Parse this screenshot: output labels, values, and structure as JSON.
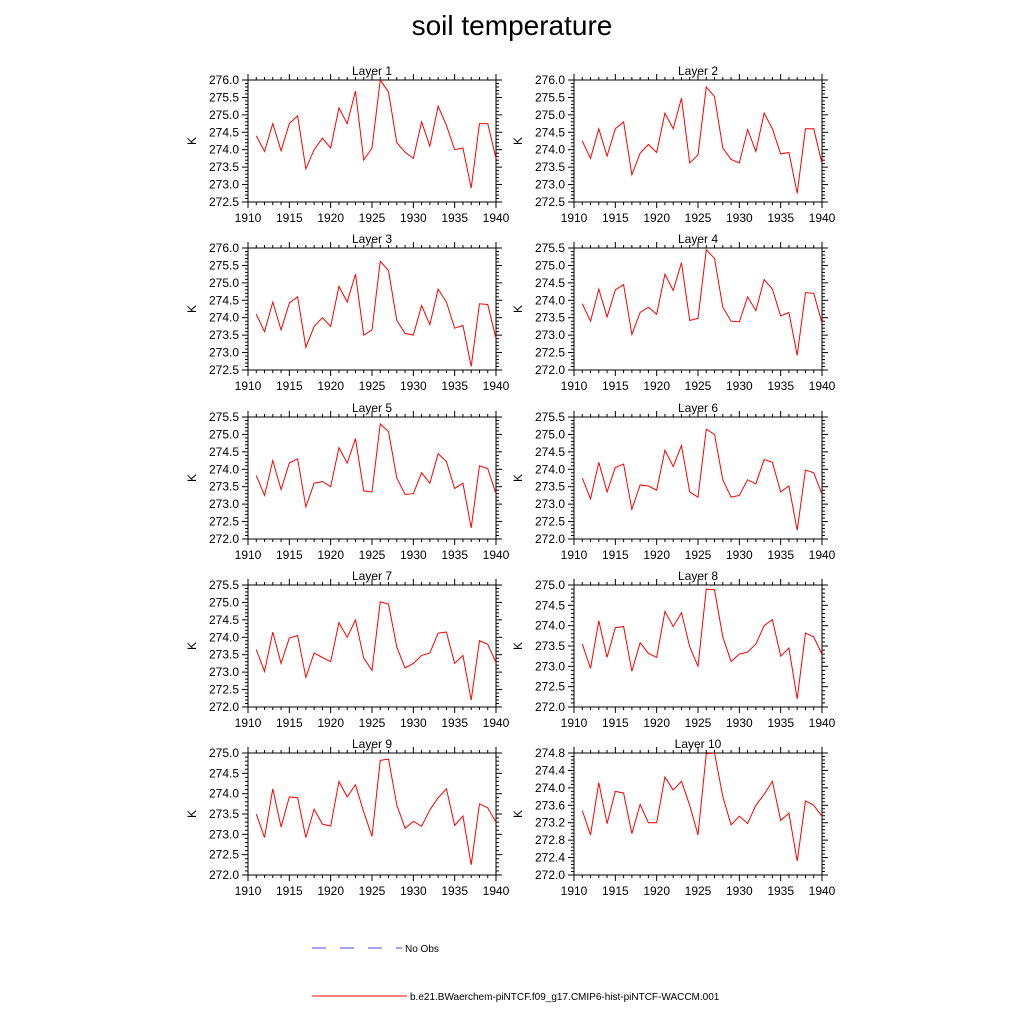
{
  "title": "soil temperature",
  "legend": {
    "obs_label": "No Obs",
    "obs_color": "#4a4adc",
    "model_label": "b.e21.BWaerchem-piNTCF.f09_g17.CMIP6-hist-piNTCF-WACCM.001",
    "model_color": "#ff0000"
  },
  "chart_data": [
    {
      "type": "line",
      "title": "Layer 1",
      "ylabel": "K",
      "xlim": [
        1910,
        1940
      ],
      "ylim": [
        272.5,
        276.0
      ],
      "xticks": [
        1910,
        1915,
        1920,
        1925,
        1930,
        1935,
        1940
      ],
      "yticks": [
        "272.5",
        "273.0",
        "273.5",
        "274.0",
        "274.5",
        "275.0",
        "275.5",
        "276.0"
      ],
      "x": [
        1911,
        1912,
        1913,
        1914,
        1915,
        1916,
        1917,
        1918,
        1919,
        1920,
        1921,
        1922,
        1923,
        1924,
        1925,
        1926,
        1927,
        1928,
        1929,
        1930,
        1931,
        1932,
        1933,
        1934,
        1935,
        1936,
        1937,
        1938,
        1939,
        1940
      ],
      "series": [
        {
          "values": [
            274.4,
            273.95,
            274.75,
            273.97,
            274.75,
            274.97,
            273.45,
            274.0,
            274.33,
            274.05,
            275.2,
            274.75,
            275.68,
            273.7,
            274.05,
            276.0,
            275.65,
            274.2,
            273.93,
            273.75,
            274.8,
            274.1,
            275.25,
            274.7,
            274.0,
            274.05,
            272.9,
            274.75,
            274.75,
            273.75
          ]
        }
      ]
    },
    {
      "type": "line",
      "title": "Layer 2",
      "ylabel": "K",
      "xlim": [
        1910,
        1940
      ],
      "ylim": [
        272.5,
        276.0
      ],
      "xticks": [
        1910,
        1915,
        1920,
        1925,
        1930,
        1935,
        1940
      ],
      "yticks": [
        "272.5",
        "273.0",
        "273.5",
        "274.0",
        "274.5",
        "275.0",
        "275.5",
        "276.0"
      ],
      "x": [
        1911,
        1912,
        1913,
        1914,
        1915,
        1916,
        1917,
        1918,
        1919,
        1920,
        1921,
        1922,
        1923,
        1924,
        1925,
        1926,
        1927,
        1928,
        1929,
        1930,
        1931,
        1932,
        1933,
        1934,
        1935,
        1936,
        1937,
        1938,
        1939,
        1940
      ],
      "series": [
        {
          "values": [
            274.25,
            273.75,
            274.6,
            273.82,
            274.6,
            274.8,
            273.28,
            273.9,
            274.15,
            273.92,
            275.05,
            274.6,
            275.48,
            273.62,
            273.85,
            275.8,
            275.52,
            274.05,
            273.72,
            273.62,
            274.58,
            273.95,
            275.05,
            274.6,
            273.88,
            273.92,
            272.75,
            274.6,
            274.6,
            273.6
          ]
        }
      ]
    },
    {
      "type": "line",
      "title": "Layer 3",
      "ylabel": "K",
      "xlim": [
        1910,
        1940
      ],
      "ylim": [
        272.5,
        276.0
      ],
      "xticks": [
        1910,
        1915,
        1920,
        1925,
        1930,
        1935,
        1940
      ],
      "yticks": [
        "272.5",
        "273.0",
        "273.5",
        "274.0",
        "274.5",
        "275.0",
        "275.5",
        "276.0"
      ],
      "x": [
        1911,
        1912,
        1913,
        1914,
        1915,
        1916,
        1917,
        1918,
        1919,
        1920,
        1921,
        1922,
        1923,
        1924,
        1925,
        1926,
        1927,
        1928,
        1929,
        1930,
        1931,
        1932,
        1933,
        1934,
        1935,
        1936,
        1937,
        1938,
        1939,
        1940
      ],
      "series": [
        {
          "values": [
            274.1,
            273.6,
            274.45,
            273.65,
            274.42,
            274.6,
            273.15,
            273.75,
            274.0,
            273.75,
            274.9,
            274.45,
            275.25,
            273.5,
            273.65,
            275.62,
            275.35,
            273.92,
            273.55,
            273.5,
            274.35,
            273.8,
            274.82,
            274.45,
            273.7,
            273.78,
            272.6,
            274.4,
            274.38,
            273.4
          ]
        }
      ]
    },
    {
      "type": "line",
      "title": "Layer 4",
      "ylabel": "K",
      "xlim": [
        1910,
        1940
      ],
      "ylim": [
        272.0,
        275.5
      ],
      "xticks": [
        1910,
        1915,
        1920,
        1925,
        1930,
        1935,
        1940
      ],
      "yticks": [
        "272.0",
        "272.5",
        "273.0",
        "273.5",
        "274.0",
        "274.5",
        "275.0",
        "275.5"
      ],
      "x": [
        1911,
        1912,
        1913,
        1914,
        1915,
        1916,
        1917,
        1918,
        1919,
        1920,
        1921,
        1922,
        1923,
        1924,
        1925,
        1926,
        1927,
        1928,
        1929,
        1930,
        1931,
        1932,
        1933,
        1934,
        1935,
        1936,
        1937,
        1938,
        1939,
        1940
      ],
      "series": [
        {
          "values": [
            273.9,
            273.4,
            274.32,
            273.52,
            274.3,
            274.45,
            273.02,
            273.65,
            273.8,
            273.6,
            274.75,
            274.28,
            275.08,
            273.42,
            273.48,
            275.45,
            275.2,
            273.8,
            273.4,
            273.38,
            274.1,
            273.7,
            274.6,
            274.32,
            273.55,
            273.65,
            272.42,
            274.22,
            274.2,
            273.35
          ]
        }
      ]
    },
    {
      "type": "line",
      "title": "Layer 5",
      "ylabel": "K",
      "xlim": [
        1910,
        1940
      ],
      "ylim": [
        272.0,
        275.5
      ],
      "xticks": [
        1910,
        1915,
        1920,
        1925,
        1930,
        1935,
        1940
      ],
      "yticks": [
        "272.0",
        "272.5",
        "273.0",
        "273.5",
        "274.0",
        "274.5",
        "275.0",
        "275.5"
      ],
      "x": [
        1911,
        1912,
        1913,
        1914,
        1915,
        1916,
        1917,
        1918,
        1919,
        1920,
        1921,
        1922,
        1923,
        1924,
        1925,
        1926,
        1927,
        1928,
        1929,
        1930,
        1931,
        1932,
        1933,
        1934,
        1935,
        1936,
        1937,
        1938,
        1939,
        1940
      ],
      "series": [
        {
          "values": [
            273.82,
            273.25,
            274.25,
            273.42,
            274.18,
            274.3,
            272.92,
            273.6,
            273.65,
            273.5,
            274.62,
            274.18,
            274.88,
            273.38,
            273.35,
            275.3,
            275.08,
            273.75,
            273.28,
            273.3,
            273.9,
            273.6,
            274.45,
            274.22,
            273.45,
            273.6,
            272.32,
            274.1,
            274.02,
            273.3
          ]
        }
      ]
    },
    {
      "type": "line",
      "title": "Layer 6",
      "ylabel": "K",
      "xlim": [
        1910,
        1940
      ],
      "ylim": [
        272.0,
        275.5
      ],
      "xticks": [
        1910,
        1915,
        1920,
        1925,
        1930,
        1935,
        1940
      ],
      "yticks": [
        "272.0",
        "272.5",
        "273.0",
        "273.5",
        "274.0",
        "274.5",
        "275.0",
        "275.5"
      ],
      "x": [
        1911,
        1912,
        1913,
        1914,
        1915,
        1916,
        1917,
        1918,
        1919,
        1920,
        1921,
        1922,
        1923,
        1924,
        1925,
        1926,
        1927,
        1928,
        1929,
        1930,
        1931,
        1932,
        1933,
        1934,
        1935,
        1936,
        1937,
        1938,
        1939,
        1940
      ],
      "series": [
        {
          "values": [
            273.75,
            273.15,
            274.2,
            273.35,
            274.05,
            274.15,
            272.85,
            273.55,
            273.52,
            273.4,
            274.55,
            274.08,
            274.68,
            273.35,
            273.2,
            275.15,
            275.0,
            273.7,
            273.2,
            273.25,
            273.7,
            273.58,
            274.28,
            274.2,
            273.35,
            273.52,
            272.25,
            273.98,
            273.9,
            273.28
          ]
        }
      ]
    },
    {
      "type": "line",
      "title": "Layer 7",
      "ylabel": "K",
      "xlim": [
        1910,
        1940
      ],
      "ylim": [
        272.0,
        275.5
      ],
      "xticks": [
        1910,
        1915,
        1920,
        1925,
        1930,
        1935,
        1940
      ],
      "yticks": [
        "272.0",
        "272.5",
        "273.0",
        "273.5",
        "274.0",
        "274.5",
        "275.0",
        "275.5"
      ],
      "x": [
        1911,
        1912,
        1913,
        1914,
        1915,
        1916,
        1917,
        1918,
        1919,
        1920,
        1921,
        1922,
        1923,
        1924,
        1925,
        1926,
        1927,
        1928,
        1929,
        1930,
        1931,
        1932,
        1933,
        1934,
        1935,
        1936,
        1937,
        1938,
        1939,
        1940
      ],
      "series": [
        {
          "values": [
            273.65,
            273.02,
            274.15,
            273.25,
            273.98,
            274.05,
            272.85,
            273.55,
            273.42,
            273.3,
            274.42,
            274.0,
            274.5,
            273.4,
            273.05,
            275.02,
            274.95,
            273.72,
            273.12,
            273.25,
            273.48,
            273.55,
            274.12,
            274.15,
            273.25,
            273.48,
            272.2,
            273.9,
            273.8,
            273.28
          ]
        }
      ]
    },
    {
      "type": "line",
      "title": "Layer 8",
      "ylabel": "K",
      "xlim": [
        1910,
        1940
      ],
      "ylim": [
        272.0,
        275.0
      ],
      "xticks": [
        1910,
        1915,
        1920,
        1925,
        1930,
        1935,
        1940
      ],
      "yticks": [
        "272.0",
        "272.5",
        "273.0",
        "273.5",
        "274.0",
        "274.5",
        "275.0"
      ],
      "x": [
        1911,
        1912,
        1913,
        1914,
        1915,
        1916,
        1917,
        1918,
        1919,
        1920,
        1921,
        1922,
        1923,
        1924,
        1925,
        1926,
        1927,
        1928,
        1929,
        1930,
        1931,
        1932,
        1933,
        1934,
        1935,
        1936,
        1937,
        1938,
        1939,
        1940
      ],
      "series": [
        {
          "values": [
            273.55,
            272.95,
            274.12,
            273.22,
            273.95,
            273.98,
            272.88,
            273.58,
            273.32,
            273.22,
            274.35,
            273.98,
            274.32,
            273.48,
            273.0,
            274.9,
            274.88,
            273.72,
            273.12,
            273.3,
            273.35,
            273.55,
            274.0,
            274.15,
            273.25,
            273.45,
            272.2,
            273.82,
            273.72,
            273.3
          ]
        }
      ]
    },
    {
      "type": "line",
      "title": "Layer 9",
      "ylabel": "K",
      "xlim": [
        1910,
        1940
      ],
      "ylim": [
        272.0,
        275.0
      ],
      "xticks": [
        1910,
        1915,
        1920,
        1925,
        1930,
        1935,
        1940
      ],
      "yticks": [
        "272.0",
        "272.5",
        "273.0",
        "273.5",
        "274.0",
        "274.5",
        "275.0"
      ],
      "x": [
        1911,
        1912,
        1913,
        1914,
        1915,
        1916,
        1917,
        1918,
        1919,
        1920,
        1921,
        1922,
        1923,
        1924,
        1925,
        1926,
        1927,
        1928,
        1929,
        1930,
        1931,
        1932,
        1933,
        1934,
        1935,
        1936,
        1937,
        1938,
        1939,
        1940
      ],
      "series": [
        {
          "values": [
            273.5,
            272.92,
            274.12,
            273.18,
            273.92,
            273.9,
            272.92,
            273.62,
            273.25,
            273.2,
            274.3,
            273.92,
            274.22,
            273.55,
            272.95,
            274.82,
            274.85,
            273.72,
            273.15,
            273.32,
            273.2,
            273.6,
            273.9,
            274.12,
            273.22,
            273.45,
            272.25,
            273.75,
            273.65,
            273.3
          ]
        }
      ]
    },
    {
      "type": "line",
      "title": "Layer 10",
      "ylabel": "K",
      "xlim": [
        1910,
        1940
      ],
      "ylim": [
        272.0,
        274.8
      ],
      "xticks": [
        1910,
        1915,
        1920,
        1925,
        1930,
        1935,
        1940
      ],
      "yticks": [
        "272.0",
        "272.4",
        "272.8",
        "273.2",
        "273.6",
        "274.0",
        "274.4",
        "274.8"
      ],
      "x": [
        1911,
        1912,
        1913,
        1914,
        1915,
        1916,
        1917,
        1918,
        1919,
        1920,
        1921,
        1922,
        1923,
        1924,
        1925,
        1926,
        1927,
        1928,
        1929,
        1930,
        1931,
        1932,
        1933,
        1934,
        1935,
        1936,
        1937,
        1938,
        1939,
        1940
      ],
      "series": [
        {
          "values": [
            273.48,
            272.92,
            274.12,
            273.18,
            273.92,
            273.88,
            272.95,
            273.62,
            273.2,
            273.2,
            274.25,
            273.95,
            274.15,
            273.6,
            272.92,
            274.78,
            274.8,
            273.8,
            273.15,
            273.35,
            273.18,
            273.6,
            273.85,
            274.15,
            273.25,
            273.42,
            272.32,
            273.7,
            273.6,
            273.35
          ]
        }
      ]
    }
  ]
}
